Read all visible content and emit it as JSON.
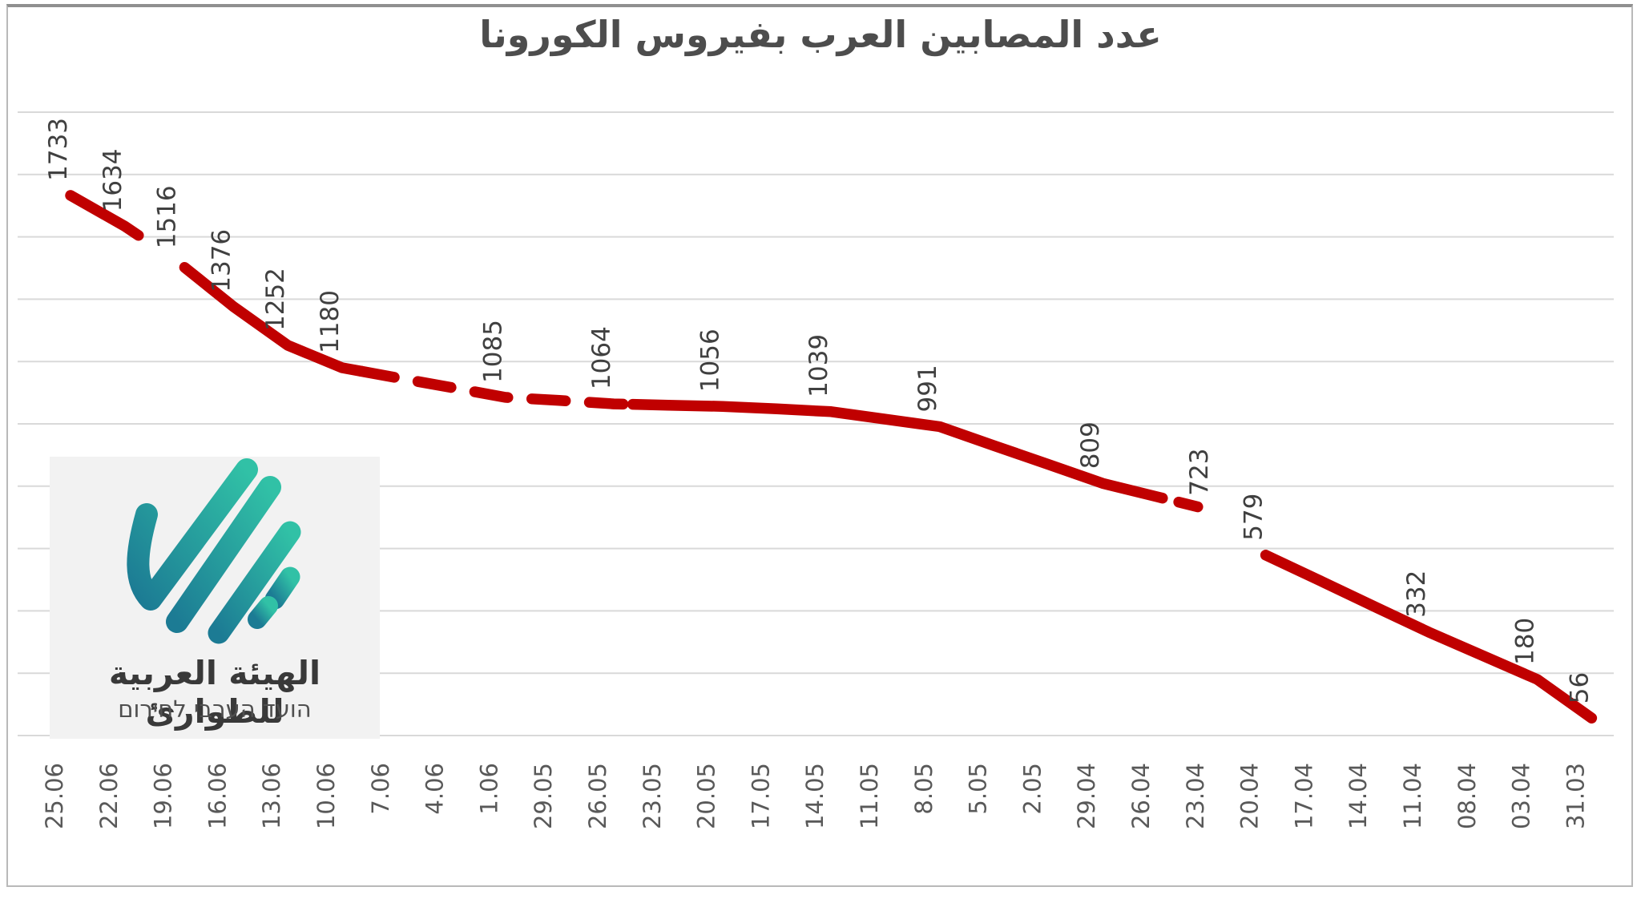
{
  "title": "عدد المصابين العرب بفيروس الكورونا",
  "logo": {
    "name_ar": "الهيئة العربية للطوارئ",
    "name_he": "הועד הערבי לחירום",
    "colors": {
      "teal_light": "#31c1a6",
      "teal_dark": "#1c7b94",
      "bg": "#f2f2f2"
    }
  },
  "chart_data": {
    "type": "line",
    "title": "عدد المصابين العرب بفيروس الكورونا",
    "xlabel": "",
    "ylabel": "",
    "ylim": [
      0,
      2000
    ],
    "grid_step": 200,
    "grid": true,
    "legend": "none",
    "series_color": "#c00000",
    "grid_color": "#d9d9d9",
    "data_label_color": "#404040",
    "axis_label_color": "#595959",
    "x_categories": [
      "25.06",
      "22.06",
      "19.06",
      "16.06",
      "13.06",
      "10.06",
      "7.06",
      "4.06",
      "1.06",
      "29.05",
      "26.05",
      "23.05",
      "20.05",
      "17.05",
      "14.05",
      "11.05",
      "8.05",
      "5.05",
      "2.05",
      "29.04",
      "26.04",
      "23.04",
      "20.04",
      "17.04",
      "14.04",
      "11.04",
      "08.04",
      "03.04",
      "31.03"
    ],
    "points": [
      {
        "date": "25.06",
        "value": 1733,
        "label": "1733"
      },
      {
        "date": "22.06",
        "value": 1634,
        "label": "1634"
      },
      {
        "date": "19.06",
        "value": 1516,
        "label": "1516"
      },
      {
        "date": "16.06",
        "value": 1376,
        "label": "1376"
      },
      {
        "date": "13.06",
        "value": 1252,
        "label": "1252"
      },
      {
        "date": "10.06",
        "value": 1180,
        "label": "1180"
      },
      {
        "date": "7.06",
        "value": 1148,
        "label": null
      },
      {
        "date": "4.06",
        "value": 1117,
        "label": null
      },
      {
        "date": "1.06",
        "value": 1085,
        "label": "1085"
      },
      {
        "date": "29.05",
        "value": 1075,
        "label": null
      },
      {
        "date": "26.05",
        "value": 1064,
        "label": "1064"
      },
      {
        "date": "23.05",
        "value": 1060,
        "label": null
      },
      {
        "date": "20.05",
        "value": 1056,
        "label": "1056"
      },
      {
        "date": "17.05",
        "value": 1048,
        "label": null
      },
      {
        "date": "14.05",
        "value": 1039,
        "label": "1039"
      },
      {
        "date": "11.05",
        "value": 1015,
        "label": null
      },
      {
        "date": "8.05",
        "value": 991,
        "label": "991"
      },
      {
        "date": "5.05",
        "value": 930,
        "label": null
      },
      {
        "date": "2.05",
        "value": 870,
        "label": null
      },
      {
        "date": "29.04",
        "value": 809,
        "label": "809"
      },
      {
        "date": "26.04",
        "value": 766,
        "label": null
      },
      {
        "date": "23.04",
        "value": 723,
        "label": "723"
      },
      {
        "date": "20.04",
        "value": 579,
        "label": "579"
      },
      {
        "date": "17.04",
        "value": 497,
        "label": null
      },
      {
        "date": "14.04",
        "value": 414,
        "label": null
      },
      {
        "date": "11.04",
        "value": 332,
        "label": "332"
      },
      {
        "date": "08.04",
        "value": 256,
        "label": null
      },
      {
        "date": "03.04",
        "value": 180,
        "label": "180"
      },
      {
        "date": "31.03",
        "value": 56,
        "label": "56"
      }
    ],
    "line_segments": [
      {
        "from": 0,
        "to": 1.25,
        "style": "solid"
      },
      {
        "from": 2.1,
        "to": 5.35,
        "style": "solid"
      },
      {
        "from": 5.35,
        "to": 10.35,
        "style": "dashed"
      },
      {
        "from": 10.35,
        "to": 20.1,
        "style": "solid"
      },
      {
        "from": 20.4,
        "to": 20.75,
        "style": "solid"
      },
      {
        "from": 22,
        "to": 28,
        "style": "solid"
      }
    ]
  }
}
